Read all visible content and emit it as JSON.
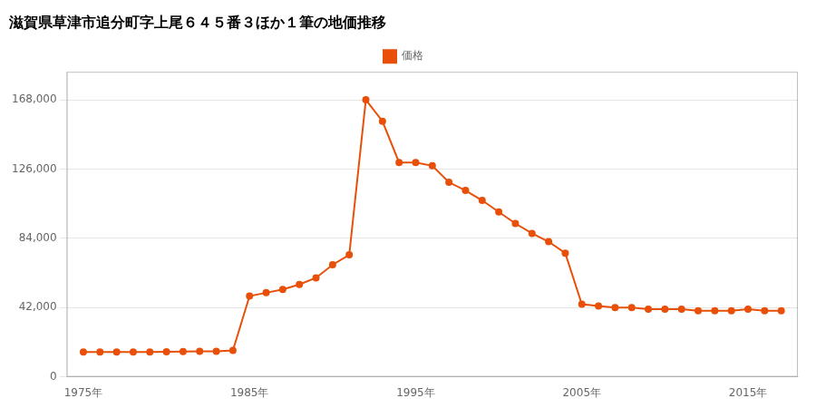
{
  "chart_data": {
    "type": "line",
    "title": "滋賀県草津市追分町字上尾６４５番３ほか１筆の地価推移",
    "x": [
      1975,
      1976,
      1977,
      1978,
      1979,
      1980,
      1981,
      1982,
      1983,
      1984,
      1985,
      1986,
      1987,
      1988,
      1989,
      1990,
      1991,
      1992,
      1993,
      1994,
      1995,
      1996,
      1997,
      1998,
      1999,
      2000,
      2001,
      2002,
      2003,
      2004,
      2005,
      2006,
      2007,
      2008,
      2009,
      2010,
      2011,
      2012,
      2013,
      2014,
      2015,
      2016,
      2017
    ],
    "series": [
      {
        "name": "価格",
        "color": "#E8500A",
        "marker": "circle",
        "values": [
          15000,
          15000,
          15000,
          15000,
          15000,
          15200,
          15300,
          15400,
          15500,
          16000,
          49000,
          51000,
          53000,
          56000,
          60000,
          68000,
          74000,
          168000,
          155000,
          130000,
          130000,
          128000,
          118000,
          113000,
          107000,
          100000,
          93000,
          87000,
          82000,
          75000,
          44000,
          43000,
          42000,
          42000,
          41000,
          41000,
          41000,
          40000,
          40000,
          40000,
          41000,
          40000,
          40000
        ]
      }
    ],
    "xlim": [
      1974,
      2018
    ],
    "xticks": [
      {
        "value": 1975,
        "label": "1975年"
      },
      {
        "value": 1985,
        "label": "1985年"
      },
      {
        "value": 1995,
        "label": "1995年"
      },
      {
        "value": 2005,
        "label": "2005年"
      },
      {
        "value": 2015,
        "label": "2015年"
      }
    ],
    "ylim": [
      0,
      185000
    ],
    "yticks": [
      0,
      {
        "value": 42000,
        "label": "42,000"
      },
      {
        "value": 84000,
        "label": "84,000"
      },
      {
        "value": 126000,
        "label": "126,000"
      },
      {
        "value": 168000,
        "label": "168,000"
      }
    ],
    "grid": "y",
    "legend": "top"
  }
}
